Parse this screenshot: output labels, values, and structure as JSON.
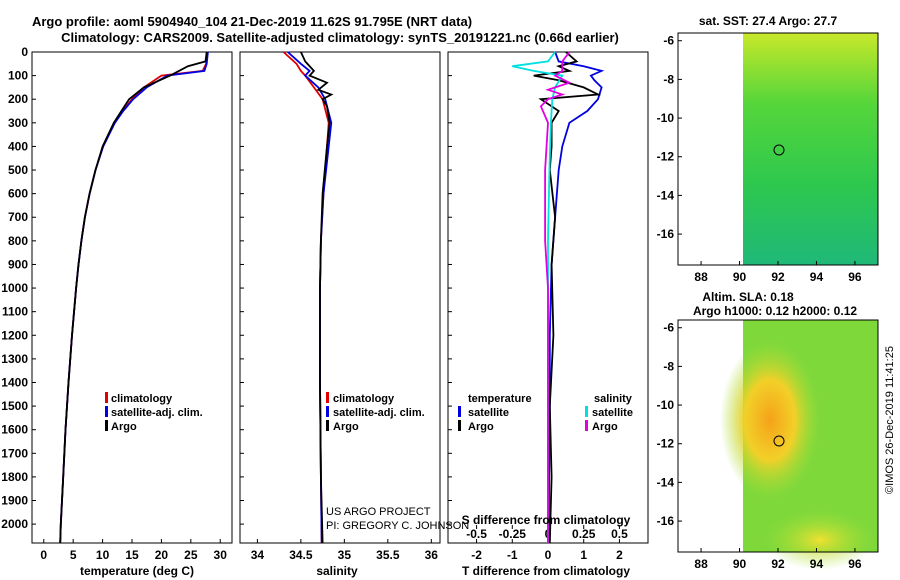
{
  "title": {
    "line1": "Argo profile: aoml 5904940_104 21-Dec-2019 11.62S 91.795E (NRT data)",
    "line2": "Climatology: CARS2009. Satellite-adjusted climatology: synTS_20191221.nc (0.66d earlier)"
  },
  "colors": {
    "climatology": "#e00000",
    "satellite": "#0000e0",
    "argo": "#000000",
    "sal_sat": "#00e0e0",
    "sal_argo": "#e000e0"
  },
  "depth_ticks": [
    0,
    100,
    200,
    300,
    400,
    500,
    600,
    700,
    800,
    900,
    1000,
    1100,
    1200,
    1300,
    1400,
    1500,
    1600,
    1700,
    1800,
    1900,
    2000
  ],
  "chart_data": [
    {
      "type": "line",
      "name": "temperature_profile",
      "xlabel": "temperature (deg C)",
      "xticks": [
        "0",
        "5",
        "10",
        "15",
        "20",
        "25",
        "30"
      ],
      "xlim": [
        -2,
        32
      ],
      "ylim": [
        2080,
        0
      ],
      "legend": [
        "climatology",
        "satellite-adj. clim.",
        "Argo"
      ],
      "series": [
        {
          "name": "climatology",
          "depth": [
            0,
            50,
            80,
            100,
            150,
            200,
            250,
            300,
            400,
            500,
            600,
            700,
            800,
            900,
            1000,
            1200,
            1400,
            1600,
            1800,
            2000,
            2080
          ],
          "values": [
            27.7,
            27.6,
            27.0,
            20.0,
            17.0,
            15.0,
            13.4,
            12.0,
            10.1,
            8.8,
            7.8,
            7.0,
            6.4,
            5.9,
            5.5,
            4.8,
            4.2,
            3.7,
            3.3,
            2.9,
            2.8
          ]
        },
        {
          "name": "satellite",
          "depth": [
            0,
            50,
            80,
            100,
            150,
            200,
            250,
            300,
            400,
            500,
            600,
            700,
            800,
            900,
            1000,
            1200,
            1400,
            1600,
            1800,
            2000,
            2080
          ],
          "values": [
            27.9,
            27.7,
            27.3,
            21.0,
            17.5,
            15.2,
            13.5,
            12.1,
            10.1,
            8.8,
            7.8,
            7.0,
            6.4,
            5.9,
            5.5,
            4.8,
            4.2,
            3.7,
            3.3,
            2.9,
            2.8
          ]
        },
        {
          "name": "Argo",
          "depth": [
            0,
            40,
            60,
            100,
            150,
            200,
            250,
            300,
            400,
            500,
            600,
            700,
            800,
            900,
            1000,
            1200,
            1400,
            1600,
            1800,
            2000,
            2080
          ],
          "values": [
            27.7,
            27.5,
            24.5,
            21.5,
            17.0,
            14.5,
            13.2,
            11.9,
            10.0,
            8.8,
            7.8,
            7.0,
            6.4,
            5.9,
            5.5,
            4.8,
            4.2,
            3.7,
            3.3,
            2.9,
            2.8
          ]
        }
      ]
    },
    {
      "type": "line",
      "name": "salinity_profile",
      "xlabel": "salinity",
      "xticks": [
        "34",
        "34.5",
        "35",
        "35.5",
        "36"
      ],
      "xlim": [
        33.8,
        36.1
      ],
      "ylim": [
        2080,
        0
      ],
      "legend": [
        "climatology",
        "satellite-adj. clim.",
        "Argo"
      ],
      "series": [
        {
          "name": "climatology",
          "depth": [
            0,
            50,
            80,
            100,
            150,
            200,
            300,
            400,
            600,
            800,
            1000,
            1400,
            1800,
            2080
          ],
          "values": [
            34.3,
            34.45,
            34.5,
            34.55,
            34.65,
            34.75,
            34.82,
            34.8,
            34.76,
            34.73,
            34.72,
            34.72,
            34.73,
            34.74
          ]
        },
        {
          "name": "satellite",
          "depth": [
            0,
            50,
            80,
            100,
            150,
            200,
            300,
            400,
            600,
            800,
            1000,
            1400,
            1800,
            2080
          ],
          "values": [
            34.35,
            34.5,
            34.6,
            34.55,
            34.7,
            34.78,
            34.85,
            34.82,
            34.76,
            34.73,
            34.72,
            34.72,
            34.73,
            34.74
          ]
        },
        {
          "name": "Argo",
          "depth": [
            0,
            40,
            80,
            100,
            130,
            160,
            180,
            200,
            230,
            300,
            400,
            600,
            800,
            1000,
            1400,
            1800,
            2080
          ],
          "values": [
            34.5,
            34.55,
            34.65,
            34.6,
            34.8,
            34.7,
            34.85,
            34.75,
            34.8,
            34.83,
            34.8,
            34.75,
            34.73,
            34.72,
            34.72,
            34.73,
            34.75
          ]
        }
      ]
    },
    {
      "type": "line",
      "name": "difference_profile",
      "xlabel": "T difference from climatology",
      "xlabel_top": "S difference from climatology",
      "xticks": [
        "-2",
        "-1",
        "0",
        "1",
        "2"
      ],
      "xticks_top": [
        "-0.5",
        "-0.25",
        "0",
        "0.25",
        "0.5"
      ],
      "xlim": [
        -2.8,
        2.8
      ],
      "ylim": [
        2080,
        0
      ],
      "legend_left_title": "temperature",
      "legend_right_title": "salinity",
      "legend_left": [
        "satellite",
        "Argo"
      ],
      "legend_right": [
        "satellite",
        "Argo"
      ],
      "series": [
        {
          "name": "T satellite",
          "depth": [
            0,
            40,
            60,
            80,
            100,
            120,
            150,
            200,
            250,
            300,
            400,
            500,
            700,
            900,
            1200,
            1500,
            1800,
            2080
          ],
          "values": [
            0.2,
            0.3,
            1.0,
            1.5,
            1.2,
            1.3,
            1.5,
            1.4,
            1.1,
            0.6,
            0.4,
            0.3,
            0.2,
            0.1,
            0.05,
            0.05,
            0.03,
            0.02
          ]
        },
        {
          "name": "T Argo",
          "depth": [
            0,
            40,
            60,
            80,
            100,
            120,
            150,
            180,
            200,
            250,
            300,
            400,
            500,
            700,
            900,
            1200,
            1500,
            1800,
            2080
          ],
          "values": [
            0.5,
            0.8,
            0.3,
            0.6,
            -0.4,
            0.3,
            1.0,
            1.4,
            -0.2,
            0.3,
            0.1,
            0.1,
            0.05,
            0.2,
            0.1,
            0.15,
            0.05,
            0.1,
            0.05
          ]
        },
        {
          "name": "S satellite",
          "depth": [
            0,
            40,
            60,
            80,
            100,
            150,
            200,
            300,
            500,
            800,
            1000,
            1500,
            2080
          ],
          "values": [
            0.05,
            0.0,
            -0.25,
            -0.1,
            0.1,
            0.05,
            0.03,
            0.02,
            0.01,
            0.0,
            0.0,
            0.0,
            0.0
          ]
        },
        {
          "name": "S Argo",
          "depth": [
            0,
            40,
            80,
            100,
            130,
            160,
            180,
            200,
            230,
            300,
            500,
            800,
            1000,
            1500,
            2080
          ],
          "values": [
            0.15,
            0.1,
            0.1,
            0.05,
            0.15,
            0.0,
            0.1,
            0.0,
            -0.05,
            0.0,
            -0.02,
            -0.02,
            0.0,
            0.0,
            0.0
          ]
        }
      ]
    },
    {
      "type": "heatmap",
      "name": "sst_map",
      "title": "sat. SST: 27.4 Argo: 27.7",
      "xticks": [
        "88",
        "90",
        "92",
        "94",
        "96"
      ],
      "yticks": [
        "-6",
        "-8",
        "-10",
        "-12",
        "-14",
        "-16"
      ],
      "xlim": [
        86.8,
        97.2
      ],
      "ylim": [
        -17.6,
        -5.6
      ],
      "marker": [
        91.795,
        -11.62
      ]
    },
    {
      "type": "heatmap",
      "name": "sla_map",
      "title1": "Altim. SLA: 0.18",
      "title2": "Argo h1000: 0.12 h2000: 0.12",
      "xticks": [
        "88",
        "90",
        "92",
        "94",
        "96"
      ],
      "yticks": [
        "-6",
        "-8",
        "-10",
        "-12",
        "-14",
        "-16"
      ],
      "xlim": [
        86.8,
        97.2
      ],
      "ylim": [
        -17.6,
        -5.6
      ],
      "marker": [
        91.795,
        -11.62
      ]
    }
  ],
  "credits": {
    "line1": "US ARGO PROJECT",
    "line2": "PI: GREGORY C. JOHNSON"
  },
  "timestamp": "©IMOS 26-Dec-2019 11:41:25"
}
